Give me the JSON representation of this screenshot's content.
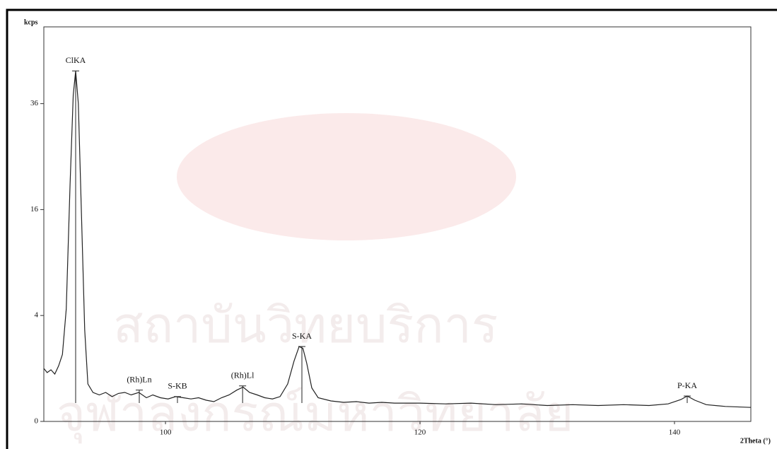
{
  "chart_data": {
    "type": "line",
    "y_label": "kcps",
    "x_label": "2Theta (°)",
    "yscale": "sqrt",
    "xlim": [
      90.44,
      146.0
    ],
    "ylim": [
      0,
      55.5
    ],
    "xticks": [
      100,
      120,
      140
    ],
    "yticks": [
      0,
      4,
      16,
      36
    ],
    "series": [
      {
        "color": "#222222",
        "x": [
          90.44,
          90.7,
          91.0,
          91.3,
          91.6,
          91.9,
          92.2,
          92.5,
          92.75,
          92.94,
          93.15,
          93.4,
          93.65,
          93.9,
          94.3,
          94.8,
          95.3,
          95.8,
          96.3,
          96.8,
          97.3,
          97.9,
          98.5,
          99.0,
          99.6,
          100.2,
          100.8,
          101.4,
          102.0,
          102.6,
          103.2,
          103.8,
          104.4,
          105.0,
          105.6,
          106.1,
          106.6,
          107.2,
          107.8,
          108.4,
          109.0,
          109.6,
          110.1,
          110.5,
          110.8,
          111.1,
          111.5,
          112.0,
          113,
          114,
          115,
          116,
          117,
          118,
          120,
          122,
          124,
          126,
          128,
          130,
          132,
          134,
          136,
          138,
          139.5,
          140.5,
          141.0,
          141.6,
          142.5,
          144,
          146
        ],
        "values": [
          1.0,
          0.85,
          0.95,
          0.8,
          1.1,
          1.6,
          4.5,
          20,
          38,
          43.8,
          36,
          15,
          3,
          0.5,
          0.3,
          0.25,
          0.3,
          0.22,
          0.28,
          0.3,
          0.25,
          0.3,
          0.2,
          0.25,
          0.2,
          0.18,
          0.22,
          0.2,
          0.18,
          0.2,
          0.16,
          0.14,
          0.2,
          0.25,
          0.35,
          0.42,
          0.3,
          0.25,
          0.2,
          0.18,
          0.22,
          0.5,
          1.3,
          2.0,
          1.9,
          1.2,
          0.4,
          0.2,
          0.15,
          0.13,
          0.14,
          0.12,
          0.13,
          0.12,
          0.12,
          0.11,
          0.12,
          0.1,
          0.11,
          0.09,
          0.1,
          0.09,
          0.1,
          0.09,
          0.11,
          0.17,
          0.23,
          0.16,
          0.1,
          0.08,
          0.07
        ]
      }
    ],
    "annotations": [
      {
        "label": "ClKA",
        "x": 92.94,
        "y": 43.8
      },
      {
        "label": "(Rh)Ln",
        "x": 97.94,
        "y": 0.35
      },
      {
        "label": "S-KB",
        "x": 100.94,
        "y": 0.22
      },
      {
        "label": "(Rh)Ll",
        "x": 106.06,
        "y": 0.45
      },
      {
        "label": "S-KA",
        "x": 110.72,
        "y": 2.0
      },
      {
        "label": "P-KA",
        "x": 141.0,
        "y": 0.23
      }
    ],
    "watermark": [
      "สถาบันวิทยบริการ",
      "จุฬาลงกรณ์มหาวิทยาลัย"
    ]
  }
}
